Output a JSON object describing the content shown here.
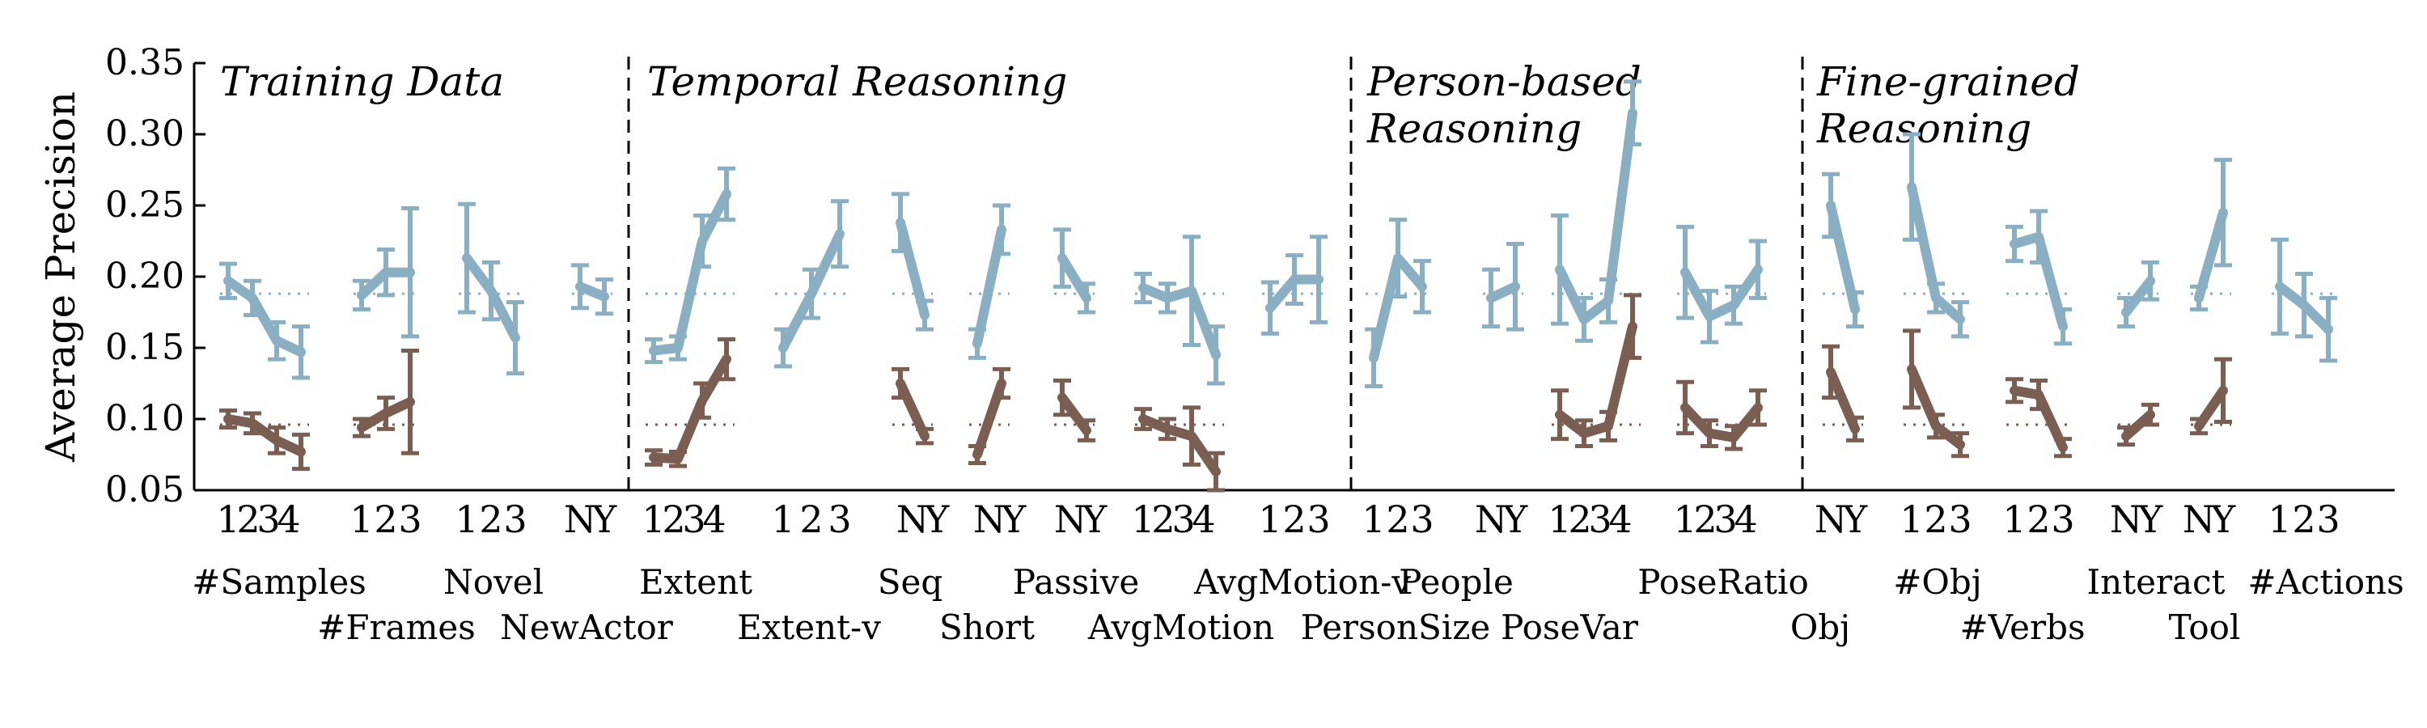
{
  "chart_data": {
    "type": "line",
    "ylabel": "Average Precision",
    "ylim": [
      0.05,
      0.35
    ],
    "yticks": [
      "0.05",
      "0.10",
      "0.15",
      "0.20",
      "0.25",
      "0.30",
      "0.35"
    ],
    "ytick_values": [
      0.05,
      0.1,
      0.15,
      0.2,
      0.25,
      0.3,
      0.35
    ],
    "grid": false,
    "colors": {
      "blue": "#8aafc2",
      "brown": "#7b5e52"
    },
    "baselines": {
      "blue": 0.188,
      "brown": 0.096
    },
    "sections": [
      {
        "lines": [
          "Training Data"
        ]
      },
      {
        "lines": [
          "Temporal Reasoning"
        ]
      },
      {
        "lines": [
          "Person-based",
          "Reasoning"
        ]
      },
      {
        "lines": [
          "Fine-grained",
          "Reasoning"
        ]
      }
    ],
    "groups": [
      {
        "name": "#Samples",
        "labels": [
          "1",
          "2",
          "3",
          "4"
        ],
        "blue": [
          0.197,
          0.185,
          0.155,
          0.147
        ],
        "blue_err": [
          0.012,
          0.012,
          0.013,
          0.018
        ],
        "brown": [
          0.1,
          0.097,
          0.085,
          0.077
        ],
        "brown_err": [
          0.006,
          0.007,
          0.009,
          0.012
        ]
      },
      {
        "name": "#Frames",
        "labels": [
          "1",
          "2",
          "3"
        ],
        "blue": [
          0.187,
          0.203,
          0.203
        ],
        "blue_err": [
          0.01,
          0.016,
          0.045
        ],
        "brown": [
          0.094,
          0.104,
          0.112
        ],
        "brown_err": [
          0.006,
          0.011,
          0.036
        ]
      },
      {
        "name": "Novel",
        "labels": [
          "1",
          "2",
          "3"
        ],
        "blue": [
          0.213,
          0.19,
          0.157
        ],
        "blue_err": [
          0.038,
          0.02,
          0.025
        ],
        "brown": [],
        "brown_err": []
      },
      {
        "name": "NewActor",
        "labels": [
          "N",
          "Y"
        ],
        "blue": [
          0.193,
          0.186
        ],
        "blue_err": [
          0.015,
          0.012
        ],
        "brown": [],
        "brown_err": []
      },
      {
        "name": "Extent",
        "labels": [
          "1",
          "2",
          "3",
          "4"
        ],
        "blue": [
          0.148,
          0.15,
          0.225,
          0.258
        ],
        "blue_err": [
          0.008,
          0.008,
          0.018,
          0.018
        ],
        "brown": [
          0.073,
          0.072,
          0.113,
          0.142
        ],
        "brown_err": [
          0.005,
          0.005,
          0.012,
          0.014
        ]
      },
      {
        "name": "Extent-v",
        "labels": [
          "1",
          "2",
          "3"
        ],
        "blue": [
          0.15,
          0.188,
          0.23
        ],
        "blue_err": [
          0.013,
          0.017,
          0.023
        ],
        "brown": [],
        "brown_err": []
      },
      {
        "name": "Seq",
        "labels": [
          "N",
          "Y"
        ],
        "blue": [
          0.238,
          0.173
        ],
        "blue_err": [
          0.02,
          0.01
        ],
        "brown": [
          0.125,
          0.088
        ],
        "brown_err": [
          0.01,
          0.005
        ]
      },
      {
        "name": "Short",
        "labels": [
          "N",
          "Y"
        ],
        "blue": [
          0.153,
          0.233
        ],
        "blue_err": [
          0.01,
          0.017
        ],
        "brown": [
          0.075,
          0.125
        ],
        "brown_err": [
          0.006,
          0.01
        ]
      },
      {
        "name": "Passive",
        "labels": [
          "N",
          "Y"
        ],
        "blue": [
          0.213,
          0.185
        ],
        "blue_err": [
          0.02,
          0.01
        ],
        "brown": [
          0.115,
          0.092
        ],
        "brown_err": [
          0.012,
          0.007
        ]
      },
      {
        "name": "AvgMotion",
        "labels": [
          "1",
          "2",
          "3",
          "4"
        ],
        "blue": [
          0.192,
          0.185,
          0.19,
          0.145
        ],
        "blue_err": [
          0.01,
          0.01,
          0.038,
          0.02
        ],
        "brown": [
          0.1,
          0.093,
          0.088,
          0.063
        ],
        "brown_err": [
          0.007,
          0.007,
          0.02,
          0.013
        ]
      },
      {
        "name": "AvgMotion-v",
        "labels": [
          "1",
          "2",
          "3"
        ],
        "blue": [
          0.178,
          0.198,
          0.198
        ],
        "blue_err": [
          0.018,
          0.017,
          0.03
        ],
        "brown": [],
        "brown_err": []
      },
      {
        "name": "PersonSize",
        "labels": [
          "1",
          "2",
          "3"
        ],
        "blue": [
          0.143,
          0.213,
          0.193
        ],
        "blue_err": [
          0.02,
          0.027,
          0.018
        ],
        "brown": [],
        "brown_err": []
      },
      {
        "name": "People",
        "labels": [
          "N",
          "Y"
        ],
        "blue": [
          0.185,
          0.193
        ],
        "blue_err": [
          0.02,
          0.03
        ],
        "brown": [],
        "brown_err": []
      },
      {
        "name": "PoseVar",
        "labels": [
          "1",
          "2",
          "3",
          "4"
        ],
        "blue": [
          0.205,
          0.17,
          0.183,
          0.315
        ],
        "blue_err": [
          0.038,
          0.015,
          0.015,
          0.022
        ],
        "brown": [
          0.103,
          0.09,
          0.095,
          0.165
        ],
        "brown_err": [
          0.017,
          0.009,
          0.01,
          0.022
        ]
      },
      {
        "name": "PoseRatio",
        "labels": [
          "1",
          "2",
          "3",
          "4"
        ],
        "blue": [
          0.203,
          0.172,
          0.18,
          0.205
        ],
        "blue_err": [
          0.032,
          0.018,
          0.013,
          0.02
        ],
        "brown": [
          0.108,
          0.09,
          0.087,
          0.108
        ],
        "brown_err": [
          0.018,
          0.009,
          0.008,
          0.012
        ]
      },
      {
        "name": "Obj",
        "labels": [
          "N",
          "Y"
        ],
        "blue": [
          0.25,
          0.177
        ],
        "blue_err": [
          0.022,
          0.012
        ],
        "brown": [
          0.133,
          0.093
        ],
        "brown_err": [
          0.018,
          0.008
        ]
      },
      {
        "name": "#Obj",
        "labels": [
          "1",
          "2",
          "3"
        ],
        "blue": [
          0.263,
          0.185,
          0.17
        ],
        "blue_err": [
          0.037,
          0.01,
          0.012
        ],
        "brown": [
          0.135,
          0.095,
          0.082
        ],
        "brown_err": [
          0.027,
          0.008,
          0.008
        ]
      },
      {
        "name": "#Verbs",
        "labels": [
          "1",
          "2",
          "3"
        ],
        "blue": [
          0.223,
          0.228,
          0.165
        ],
        "blue_err": [
          0.012,
          0.018,
          0.012
        ],
        "brown": [
          0.12,
          0.117,
          0.08
        ],
        "brown_err": [
          0.008,
          0.01,
          0.006
        ]
      },
      {
        "name": "Interact",
        "labels": [
          "N",
          "Y"
        ],
        "blue": [
          0.175,
          0.197
        ],
        "blue_err": [
          0.01,
          0.013
        ],
        "brown": [
          0.088,
          0.103
        ],
        "brown_err": [
          0.006,
          0.007
        ]
      },
      {
        "name": "Tool",
        "labels": [
          "N",
          "Y"
        ],
        "blue": [
          0.185,
          0.245
        ],
        "blue_err": [
          0.008,
          0.037
        ],
        "brown": [
          0.095,
          0.12
        ],
        "brown_err": [
          0.005,
          0.022
        ]
      },
      {
        "name": "#Actions",
        "labels": [
          "1",
          "2",
          "3"
        ],
        "blue": [
          0.193,
          0.18,
          0.163
        ],
        "blue_err": [
          0.033,
          0.022,
          0.022
        ],
        "brown": [],
        "brown_err": []
      }
    ]
  }
}
